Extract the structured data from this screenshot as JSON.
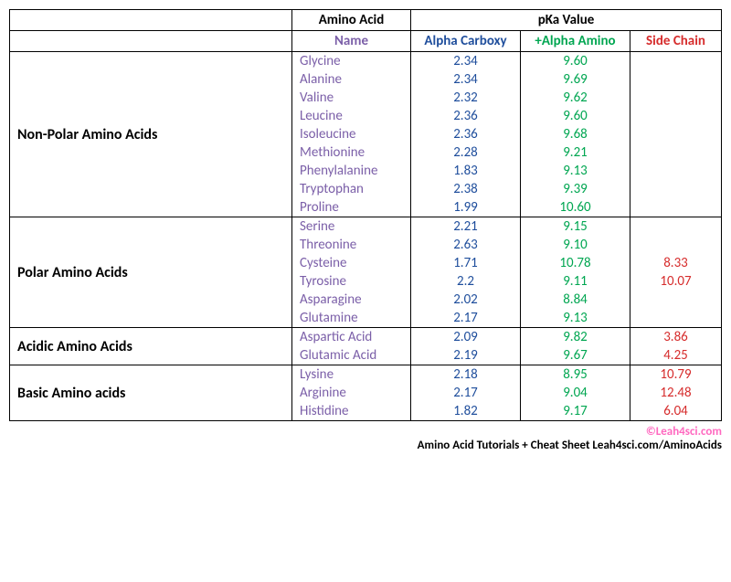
{
  "headers": {
    "aminoAcid": "Amino Acid",
    "pkaValue": "pKa Value",
    "name": "Name",
    "alphaCarboxy": "Alpha Carboxy",
    "alphaAmino": "+Alpha Amino",
    "sideChain": "Side Chain"
  },
  "colors": {
    "name": "#7b5fa8",
    "carboxy": "#1f4e9c",
    "amino": "#00a651",
    "side": "#d62c2c",
    "copyright": "#ff69c0"
  },
  "groups": [
    {
      "category": "Non-Polar Amino Acids",
      "rows": [
        {
          "name": "Glycine",
          "carboxy": "2.34",
          "amino": "9.60",
          "side": ""
        },
        {
          "name": "Alanine",
          "carboxy": "2.34",
          "amino": "9.69",
          "side": ""
        },
        {
          "name": "Valine",
          "carboxy": "2.32",
          "amino": "9.62",
          "side": ""
        },
        {
          "name": "Leucine",
          "carboxy": "2.36",
          "amino": "9.60",
          "side": ""
        },
        {
          "name": "Isoleucine",
          "carboxy": "2.36",
          "amino": "9.68",
          "side": ""
        },
        {
          "name": "Methionine",
          "carboxy": "2.28",
          "amino": "9.21",
          "side": ""
        },
        {
          "name": "Phenylalanine",
          "carboxy": "1.83",
          "amino": "9.13",
          "side": ""
        },
        {
          "name": "Tryptophan",
          "carboxy": "2.38",
          "amino": "9.39",
          "side": ""
        },
        {
          "name": "Proline",
          "carboxy": "1.99",
          "amino": "10.60",
          "side": ""
        }
      ]
    },
    {
      "category": "Polar Amino Acids",
      "rows": [
        {
          "name": "Serine",
          "carboxy": "2.21",
          "amino": "9.15",
          "side": ""
        },
        {
          "name": "Threonine",
          "carboxy": "2.63",
          "amino": "9.10",
          "side": ""
        },
        {
          "name": "Cysteine",
          "carboxy": "1.71",
          "amino": "10.78",
          "side": "8.33"
        },
        {
          "name": "Tyrosine",
          "carboxy": "2.2",
          "amino": "9.11",
          "side": "10.07"
        },
        {
          "name": "Asparagine",
          "carboxy": "2.02",
          "amino": "8.84",
          "side": ""
        },
        {
          "name": "Glutamine",
          "carboxy": "2.17",
          "amino": "9.13",
          "side": ""
        }
      ]
    },
    {
      "category": "Acidic Amino Acids",
      "rows": [
        {
          "name": "Aspartic Acid",
          "carboxy": "2.09",
          "amino": "9.82",
          "side": "3.86"
        },
        {
          "name": "Glutamic Acid",
          "carboxy": "2.19",
          "amino": "9.67",
          "side": "4.25"
        }
      ]
    },
    {
      "category": "Basic Amino acids",
      "rows": [
        {
          "name": "Lysine",
          "carboxy": "2.18",
          "amino": "8.95",
          "side": "10.79"
        },
        {
          "name": "Arginine",
          "carboxy": "2.17",
          "amino": "9.04",
          "side": "12.48"
        },
        {
          "name": "Histidine",
          "carboxy": "1.82",
          "amino": "9.17",
          "side": "6.04"
        }
      ]
    }
  ],
  "footer": {
    "copyright": "©Leah4sci.com",
    "tutorial": "Amino Acid Tutorials + Cheat Sheet Leah4sci.com/AminoAcids"
  }
}
